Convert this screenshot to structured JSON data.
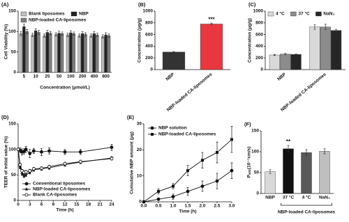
{
  "chart_data": [
    {
      "label": "(A)",
      "type": "bar",
      "categories": [
        "5",
        "10",
        "25",
        "50",
        "100",
        "200",
        "400",
        "800"
      ],
      "series": [
        {
          "name": "Blank liposomes",
          "color": "#bdbdbd",
          "values": [
            95,
            92,
            90,
            93,
            92,
            90,
            90,
            88
          ],
          "errors": [
            5,
            4,
            4,
            4,
            4,
            4,
            4,
            4
          ]
        },
        {
          "name": "NBP",
          "color": "#222222",
          "values": [
            112,
            102,
            98,
            96,
            97,
            95,
            95,
            92
          ],
          "errors": [
            6,
            5,
            5,
            5,
            5,
            5,
            5,
            5
          ]
        },
        {
          "name": "NBP-loaded CA-liposomes",
          "color": "#7f7f7f",
          "values": [
            100,
            98,
            96,
            95,
            95,
            93,
            92,
            90
          ],
          "errors": [
            5,
            5,
            4,
            4,
            4,
            4,
            4,
            4
          ]
        }
      ],
      "ylim": [
        0,
        150
      ],
      "yticks": [
        0,
        50,
        100,
        150
      ],
      "y_label": "Cell Viability (%)",
      "x_label": "Concentration (μmol/L)",
      "legend": "upper center"
    },
    {
      "label": "(B)",
      "type": "bar",
      "categories": [
        "NBP",
        "NBP-loaded CA-liposomes"
      ],
      "values": [
        300,
        780
      ],
      "errors": [
        8,
        15
      ],
      "colors": [
        "#333333",
        "#e8373f"
      ],
      "annotations": [
        null,
        "***"
      ],
      "ylim": [
        0,
        1000
      ],
      "yticks": [
        0,
        200,
        400,
        600,
        800,
        1000
      ],
      "y_label": "Concentration (μg/g)"
    },
    {
      "label": "(C)",
      "type": "bar",
      "categories": [
        "NBP",
        "NBP-loaded CA-liposomes"
      ],
      "series": [
        {
          "name": "4 °C",
          "color": "#d9d9d9",
          "values": [
            250,
            730
          ],
          "errors": [
            10,
            40
          ]
        },
        {
          "name": "37 °C",
          "color": "#8c8c8c",
          "values": [
            265,
            730
          ],
          "errors": [
            10,
            45
          ]
        },
        {
          "name": "NaN₃",
          "color": "#262626",
          "values": [
            260,
            670
          ],
          "errors": [
            8,
            20
          ]
        }
      ],
      "ylim": [
        0,
        1000
      ],
      "yticks": [
        0,
        200,
        400,
        600,
        800,
        1000
      ],
      "y_label": "Concentration (μg/g)",
      "legend": "upper center"
    },
    {
      "label": "(D)",
      "type": "line",
      "x": [
        0,
        0.5,
        1,
        1.5,
        2,
        3,
        4,
        6,
        8,
        12,
        16,
        24
      ],
      "series": [
        {
          "name": "Conventional liposomes",
          "color": "#111111",
          "marker": "circle",
          "values": [
            100,
            98,
            95,
            96,
            100,
            92,
            97,
            95,
            97,
            95,
            95,
            104
          ],
          "errors": [
            0,
            5,
            6,
            5,
            6,
            8,
            5,
            7,
            6,
            5,
            5,
            6
          ]
        },
        {
          "name": "NBP-loaded CA-liposomes",
          "color": "#111111",
          "marker": "star",
          "values": [
            100,
            65,
            52,
            48,
            50,
            55,
            60,
            62,
            64,
            70,
            75,
            83
          ],
          "errors": [
            0,
            3,
            3,
            3,
            3,
            3,
            3,
            3,
            3,
            3,
            3,
            3
          ]
        },
        {
          "name": "Blank CA-liposomes",
          "color": "#111111",
          "marker": "open-circle",
          "values": [
            100,
            70,
            58,
            55,
            56,
            58,
            62,
            63,
            66,
            72,
            76,
            82
          ],
          "errors": [
            0,
            3,
            3,
            3,
            3,
            3,
            3,
            3,
            3,
            3,
            3,
            3
          ]
        }
      ],
      "xlim": [
        0,
        24
      ],
      "xticks": [
        0,
        3,
        6,
        9,
        12,
        15,
        18,
        21,
        24
      ],
      "ylim": [
        0,
        150
      ],
      "yticks": [
        0,
        50,
        100,
        150
      ],
      "y_label": "TEER of initial value (%)",
      "x_label": "Time (h)",
      "legend": "lower left"
    },
    {
      "label": "(E)",
      "type": "line",
      "x": [
        0,
        0.5,
        1,
        1.5,
        2,
        2.5,
        3
      ],
      "series": [
        {
          "name": "NBP solution",
          "color": "#111111",
          "marker": "circle",
          "values": [
            0,
            1,
            2,
            4,
            6,
            8,
            12
          ],
          "errors": [
            0,
            0.5,
            1,
            1.5,
            2,
            3,
            3
          ]
        },
        {
          "name": "NBP-loaded CA-liposomes",
          "color": "#111111",
          "marker": "square",
          "values": [
            0,
            4,
            6,
            12,
            16,
            19,
            24
          ],
          "errors": [
            0,
            1,
            1,
            2,
            3,
            4,
            5
          ]
        }
      ],
      "xlim": [
        0,
        3
      ],
      "xticks": [
        {
          "value": 0,
          "label": "0.0"
        },
        0.5,
        {
          "value": 1,
          "label": "1.0"
        },
        1.5,
        {
          "value": 2,
          "label": "2.0"
        },
        2.5,
        {
          "value": 3,
          "label": "3.0"
        }
      ],
      "ylim": [
        0,
        30
      ],
      "yticks": [
        0,
        10,
        20,
        30
      ],
      "y_label": "Cumulative NBP amount (μg)",
      "x_label": "Time (h)",
      "legend": "upper left"
    },
    {
      "label": "(F)",
      "type": "bar",
      "categories": [
        "NBP",
        "37 °C",
        "4 °C",
        "NaN₃"
      ],
      "values": [
        52,
        107,
        98,
        101
      ],
      "errors": [
        5,
        8,
        7,
        6
      ],
      "colors": [
        "#d9d9d9",
        "#111111",
        "#595959",
        "#bfbfbf"
      ],
      "annotations": [
        null,
        "**",
        null,
        null
      ],
      "ylim": [
        0,
        150
      ],
      "yticks": [
        0,
        50,
        100,
        150
      ],
      "y_label": "Pₐₚₚ(10⁻⁷cm/s)",
      "group_label": "NBP-loaded CA-liposomes"
    }
  ]
}
